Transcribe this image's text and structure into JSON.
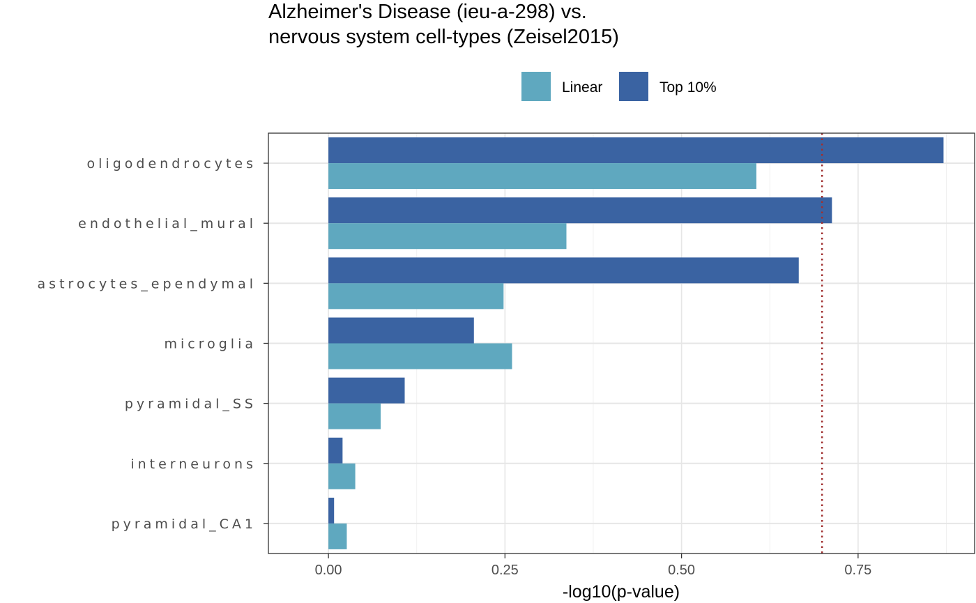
{
  "chart_data": {
    "type": "bar",
    "orientation": "horizontal",
    "title": "Alzheimer's Disease (ieu-a-298) vs.\nnervous system cell-types (Zeisel2015)",
    "xlabel": "-log10(p-value)",
    "ylabel": "",
    "xlim": [
      -0.085,
      0.915
    ],
    "x_ticks": [
      0.0,
      0.25,
      0.5,
      0.75
    ],
    "x_tick_labels": [
      "0.00",
      "0.25",
      "0.50",
      "0.75"
    ],
    "categories": [
      "oligodendrocytes",
      "endothelial_mural",
      "astrocytes_ependymal",
      "microglia",
      "pyramidal_SS",
      "interneurons",
      "pyramidal_CA1"
    ],
    "series": [
      {
        "name": "Top 10%",
        "color": "#3a63a2",
        "values": [
          0.871,
          0.713,
          0.666,
          0.206,
          0.108,
          0.02,
          0.008
        ]
      },
      {
        "name": "Linear",
        "color": "#5fa8bf",
        "values": [
          0.606,
          0.337,
          0.248,
          0.26,
          0.074,
          0.038,
          0.026
        ]
      }
    ],
    "legend": {
      "position": "top",
      "entries": [
        {
          "label": "Linear",
          "color": "#5fa8bf"
        },
        {
          "label": "Top 10%",
          "color": "#3a63a2"
        }
      ]
    },
    "reference_line": {
      "x": 0.699,
      "style": "dotted",
      "color": "#a03030"
    },
    "grid": true
  }
}
